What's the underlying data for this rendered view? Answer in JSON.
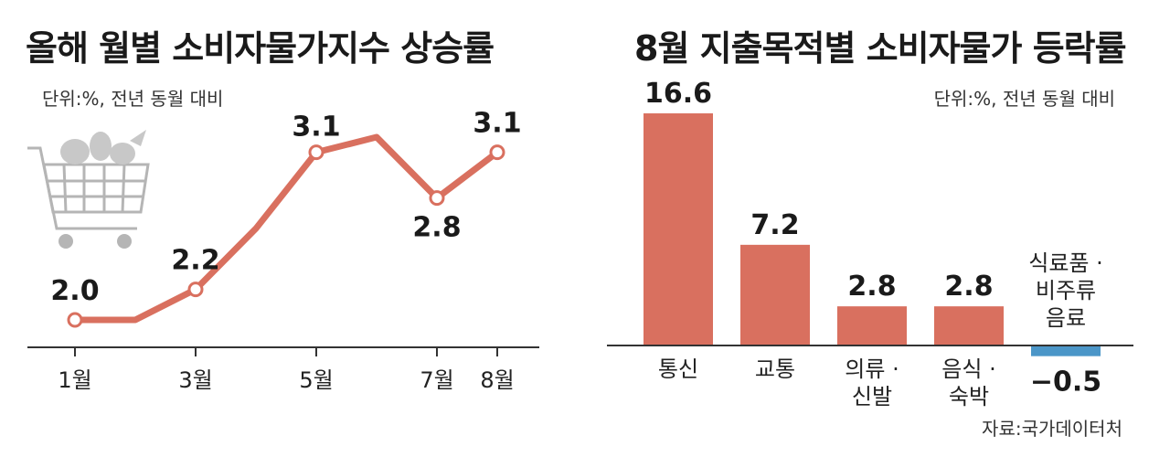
{
  "left": {
    "title": "올해 월별 소비자물가지수 상승률",
    "unit": "단위:%, 전년 동월 대비",
    "colors": {
      "line": "#d9705f",
      "marker_fill": "#ffffff",
      "axis": "#333333"
    },
    "icon": "shopping-cart-icon"
  },
  "right": {
    "title": "8월 지출목적별 소비자물가 등락률",
    "unit": "단위:%, 전년 동월 대비",
    "source": "자료:국가데이터처",
    "colors": {
      "positive": "#d9705f",
      "negative": "#4b96c8",
      "axis": "#333333"
    }
  },
  "chart_data": [
    {
      "type": "line",
      "title": "올해 월별 소비자물가지수 상승률",
      "ylabel": "단위:%, 전년 동월 대비",
      "x": [
        1,
        2,
        3,
        4,
        5,
        6,
        7,
        8
      ],
      "x_tick_labels": [
        "1월",
        "",
        "3월",
        "",
        "5월",
        "",
        "7월",
        "8월"
      ],
      "values": [
        2.0,
        2.0,
        2.2,
        2.6,
        3.1,
        3.2,
        2.8,
        3.1
      ],
      "marked_points": [
        1,
        3,
        5,
        7,
        8
      ],
      "data_labels": {
        "1": "2.0",
        "3": "2.2",
        "5": "3.1",
        "7": "2.8",
        "8": "3.1"
      },
      "ylim": [
        1.8,
        3.4
      ],
      "grid": false
    },
    {
      "type": "bar",
      "title": "8월 지출목적별 소비자물가 등락률",
      "ylabel": "단위:%, 전년 동월 대비",
      "categories": [
        [
          "통신"
        ],
        [
          "교통"
        ],
        [
          "의류 ·",
          "신발"
        ],
        [
          "음식 ·",
          "숙박"
        ],
        [
          "식료품 ·",
          "비주류",
          "음료"
        ]
      ],
      "values": [
        16.6,
        7.2,
        2.8,
        2.8,
        -0.5
      ],
      "data_labels": [
        "16.6",
        "7.2",
        "2.8",
        "2.8",
        "−0.5"
      ],
      "ylim": [
        -1,
        17
      ],
      "grid": false
    }
  ]
}
